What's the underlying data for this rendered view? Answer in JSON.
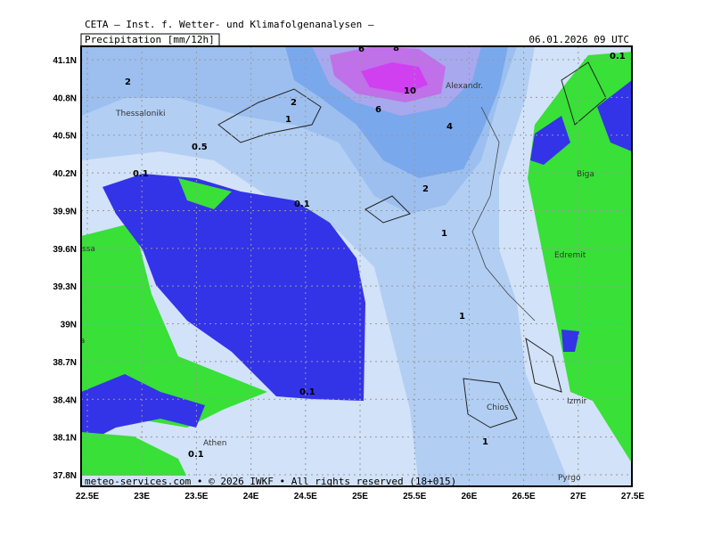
{
  "header": {
    "source": "CETA – Inst. f. Wetter- und Klimafolgenanalysen –",
    "product": "Precipitation [mm/12h]",
    "valid": "06.01.2026 09 UTC"
  },
  "map": {
    "lat_labels": [
      "41.1N",
      "40.8N",
      "40.5N",
      "40.2N",
      "39.9N",
      "39.6N",
      "39.3N",
      "39N",
      "38.7N",
      "38.4N",
      "38.1N",
      "37.8N"
    ],
    "lon_labels": [
      "22.5E",
      "23E",
      "23.5E",
      "24E",
      "24.5E",
      "25E",
      "25.5E",
      "26E",
      "26.5E",
      "27E",
      "27.5E"
    ],
    "places": [
      "Thessaloniki",
      "Alexandr.",
      "Biga",
      "Edremit",
      "ssa",
      "Lamia",
      "Athen",
      "Chios",
      "Izmir",
      "Pyrgo"
    ],
    "contour_labels": [
      "2",
      "6",
      "8",
      "10",
      "6",
      "4",
      "2",
      "1",
      "0.5",
      "0.1",
      "0.1",
      "2",
      "1",
      "1",
      "0.1",
      "0.1",
      "1",
      "0.1"
    ],
    "footer": "meteo-services.com • © 2026 IWKF • All rights reserved (18+015)"
  }
}
